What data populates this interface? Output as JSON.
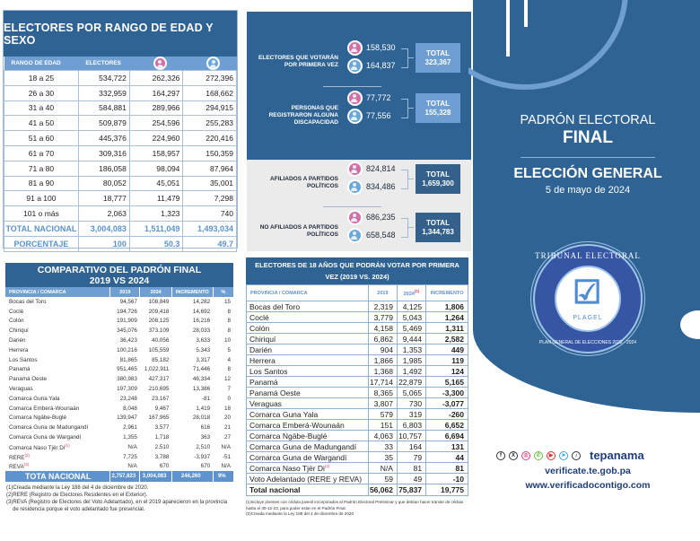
{
  "age_table": {
    "title": "ELECTORES POR RANGO DE EDAD Y SEXO",
    "headers": [
      "RANGO DE EDAD",
      "ELECTORES",
      "female-icon",
      "male-icon"
    ],
    "rows": [
      [
        "18 a 25",
        "534,722",
        "262,326",
        "272,396"
      ],
      [
        "26 a 30",
        "332,959",
        "164,297",
        "168,662"
      ],
      [
        "31 a 40",
        "584,881",
        "289,966",
        "294,915"
      ],
      [
        "41 a 50",
        "509,879",
        "254,596",
        "255,283"
      ],
      [
        "51 a 60",
        "445,376",
        "224,960",
        "220,416"
      ],
      [
        "61 a 70",
        "309,316",
        "158,957",
        "150,359"
      ],
      [
        "71 a 80",
        "186,058",
        "98,094",
        "87,964"
      ],
      [
        "81 a 90",
        "80,052",
        "45,051",
        "35,001"
      ],
      [
        "91 a 100",
        "18,777",
        "11,479",
        "7,298"
      ],
      [
        "101 o más",
        "2,063",
        "1,323",
        "740"
      ]
    ],
    "total": [
      "TOTAL NACIONAL",
      "3,004,083",
      "1,511,049",
      "1,493,034"
    ],
    "percent": [
      "PORCENTAJE",
      "100",
      "50.3",
      "49.7"
    ]
  },
  "comparison_table": {
    "title_line1": "COMPARATIVO DEL PADRÓN FINAL",
    "title_line2": "2019 VS 2024",
    "headers": [
      "PROVINCIA / COMARCA",
      "2019",
      "2024",
      "INCREMENTO",
      "%"
    ],
    "rows": [
      [
        "Bocas del Toro",
        "94,567",
        "108,849",
        "14,282",
        "15"
      ],
      [
        "Coclé",
        "194,726",
        "209,418",
        "14,692",
        "8"
      ],
      [
        "Colón",
        "191,909",
        "208,125",
        "16,216",
        "8"
      ],
      [
        "Chiriquí",
        "345,076",
        "373,109",
        "28,033",
        "8"
      ],
      [
        "Darién",
        "36,423",
        "40,056",
        "3,633",
        "10"
      ],
      [
        "Herrera",
        "100,216",
        "105,559",
        "5,343",
        "5"
      ],
      [
        "Los Santos",
        "81,865",
        "85,182",
        "3,317",
        "4"
      ],
      [
        "Panamá",
        "951,465",
        "1,022,911",
        "71,446",
        "8"
      ],
      [
        "Panamá Oeste",
        "380,983",
        "427,317",
        "46,334",
        "12"
      ],
      [
        "Veraguas",
        "197,309",
        "210,695",
        "13,386",
        "7"
      ],
      [
        "Comarca Guna Yala",
        "23,248",
        "23,167",
        "-81",
        "0"
      ],
      [
        "Comarca Emberá-Wounaán",
        "8,048",
        "9,467",
        "1,419",
        "18"
      ],
      [
        "Comarca Ngäbe-Buglé",
        "139,947",
        "167,965",
        "28,018",
        "20"
      ],
      [
        "Comarca Guna de Madungandí",
        "2,961",
        "3,577",
        "616",
        "21"
      ],
      [
        "Comarca Guna de Wargandí",
        "1,355",
        "1,718",
        "363",
        "27"
      ],
      [
        "Comarca Naso Tjër Di",
        "N/A",
        "2,510",
        "2,510",
        "N/A"
      ],
      [
        "RERE",
        "7,725",
        "3,788",
        "-3,937",
        "-51"
      ],
      [
        "REVA",
        "N/A",
        "670",
        "670",
        "N/A"
      ]
    ],
    "row_notes": {
      "15": "(1)",
      "16": "(2)",
      "17": "(3)"
    },
    "total": [
      "TOTA NACIONAL",
      "2,757,823",
      "3,004,083",
      "246,260",
      "9%"
    ],
    "notes": [
      "(1)Creada mediante  la Ley 188 del 4 de diciembre de 2020.",
      "(2)RERE (Registro de Electores Residentes en el Exterior).",
      "(3)REVA (Registro de Electores del Voto Adelantado), en el 2019 aparecieron en la provincia de residencia porque el voto adelantado fue presencial."
    ]
  },
  "summary": {
    "first_time": {
      "label": "ELECTORES QUE VOTARÁN POR PRIMERA VEZ",
      "female": "158,530",
      "male": "164,837",
      "total_label": "TOTAL",
      "total": "323,367"
    },
    "disability": {
      "label": "PERSONAS QUE REGISTRARON ALGUNA DISCAPACIDAD",
      "female": "77,772",
      "male": "77,556",
      "total_label": "TOTAL",
      "total": "155,328"
    },
    "affiliated": {
      "label": "AFILIADOS A PARTIDOS POLÍTICOS",
      "female": "824,814",
      "male": "834,486",
      "total_label": "TOTAL",
      "total": "1,659,300"
    },
    "not_affiliated": {
      "label": "NO AFILIADOS A PARTIDOS POLÍTICOS",
      "female": "686,235",
      "male": "658,548",
      "total_label": "TOTAL",
      "total": "1,344,783"
    }
  },
  "first_time_table": {
    "title": "ELECTORES DE 18 AÑOS QUE PODRÁN VOTAR POR PRIMERA VEZ (2019 VS. 2024)",
    "headers": [
      "PROVINCIA / COMARCA",
      "2019",
      "2024",
      "INCREMENTO"
    ],
    "header_note": "(1)",
    "rows": [
      [
        "Bocas del Toro",
        "2,319",
        "4,125",
        "1,806"
      ],
      [
        "Coclé",
        "3,779",
        "5,043",
        "1,264"
      ],
      [
        "Colón",
        "4,158",
        "5,469",
        "1,311"
      ],
      [
        "Chiriquí",
        "6,862",
        "9,444",
        "2,582"
      ],
      [
        "Darién",
        "904",
        "1,353",
        "449"
      ],
      [
        "Herrera",
        "1,866",
        "1,985",
        "119"
      ],
      [
        "Los Santos",
        "1,368",
        "1,492",
        "124"
      ],
      [
        "Panamá",
        "17,714",
        "22,879",
        "5,165"
      ],
      [
        "Panamá Oeste",
        "8,365",
        "5,065",
        "-3,300"
      ],
      [
        "Veraguas",
        "3,807",
        "730",
        "-3,077"
      ],
      [
        "Comarca Guna Yala",
        "579",
        "319",
        "-260"
      ],
      [
        "Comarca Emberá-Wounaán",
        "151",
        "6,803",
        "6,652"
      ],
      [
        "Comarca Ngäbe-Buglé",
        "4,063",
        "10,757",
        "6,694"
      ],
      [
        "Comarca Guna de Madungandí",
        "33",
        "164",
        "131"
      ],
      [
        "Comarca Guna de Wargandí",
        "35",
        "79",
        "44"
      ],
      [
        "Comarca Naso Tjër Di",
        "N/A",
        "81",
        "81"
      ],
      [
        "Voto Adelantado (RERE y REVA)",
        "59",
        "49",
        "-10"
      ]
    ],
    "naso_note": "(2)",
    "total": [
      "Total nacional",
      "56,062",
      "75,837",
      "19,775"
    ],
    "notes": [
      "(1)Incluye jóvenes con cédula juvenil incorporados al Padrón Electoral Preliminar y que debían hacer trámite de cédula hasta el 30-12-23, para poder estar en el Padrón Final.",
      "(2)Creada mediante la Ley 188 del 4 de diciembre de 2020."
    ]
  },
  "cover": {
    "title_line1": "PADRÓN ELECTORAL",
    "title_line2": "FINAL",
    "subtitle": "ELECCIÓN GENERAL",
    "date": "5 de mayo de 2024",
    "seal_top": "TRIBUNAL ELECTORAL",
    "seal_bottom": "PLAN GENERAL DE ELECCIONES 2022 - 2024",
    "seal_name": "PLAGEL",
    "social_icons": [
      "f",
      "X",
      "◎",
      "✆",
      "▶",
      "➤",
      "♪"
    ],
    "handle": "tepanama",
    "url1": "verificate.te.gob.pa",
    "url2": "www.verificadocontigo.com",
    "colors": {
      "primary": "#2f6393",
      "accent": "#6f9fd2",
      "female": "#d46fa6",
      "male": "#6aa8da"
    }
  }
}
